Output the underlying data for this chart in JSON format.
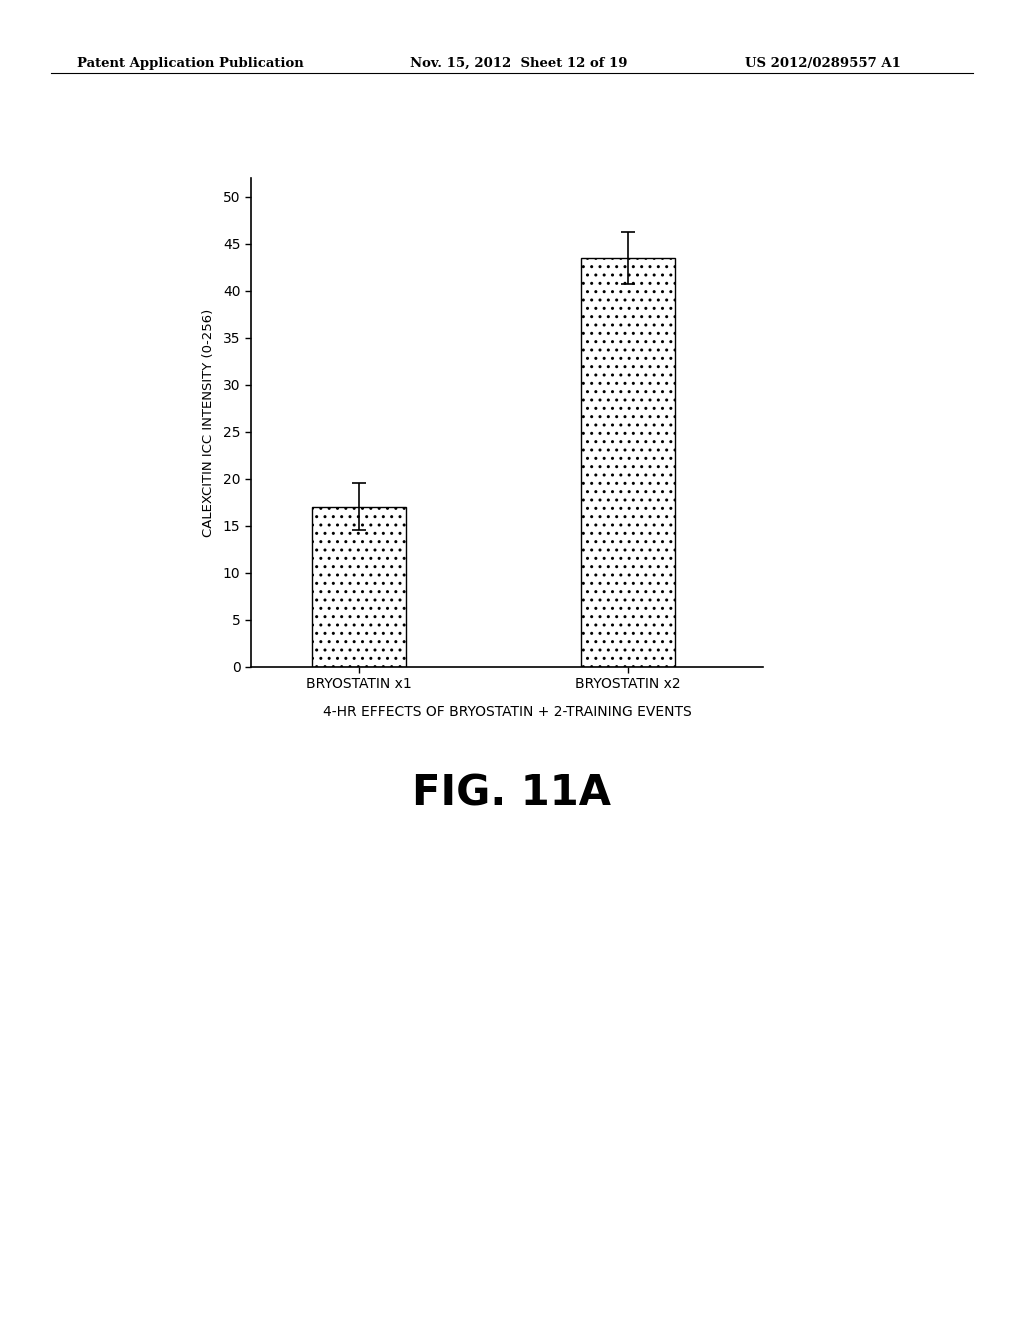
{
  "categories": [
    "BRYOSTATIN x1",
    "BRYOSTATIN x2"
  ],
  "values": [
    17.0,
    43.5
  ],
  "errors": [
    2.5,
    2.8
  ],
  "ylabel": "CALEXCITIN ICC INTENSITY (0-256)",
  "xlabel": "4-HR EFFECTS OF BRYOSTATIN + 2-TRAINING EVENTS",
  "figure_label": "FIG. 11A",
  "ylim": [
    0,
    52
  ],
  "yticks": [
    0,
    5,
    10,
    15,
    20,
    25,
    30,
    35,
    40,
    45,
    50
  ],
  "bar_color": "#ffffff",
  "bar_edgecolor": "#000000",
  "header_left": "Patent Application Publication",
  "header_center": "Nov. 15, 2012  Sheet 12 of 19",
  "header_right": "US 2012/0289557 A1",
  "background_color": "#ffffff"
}
